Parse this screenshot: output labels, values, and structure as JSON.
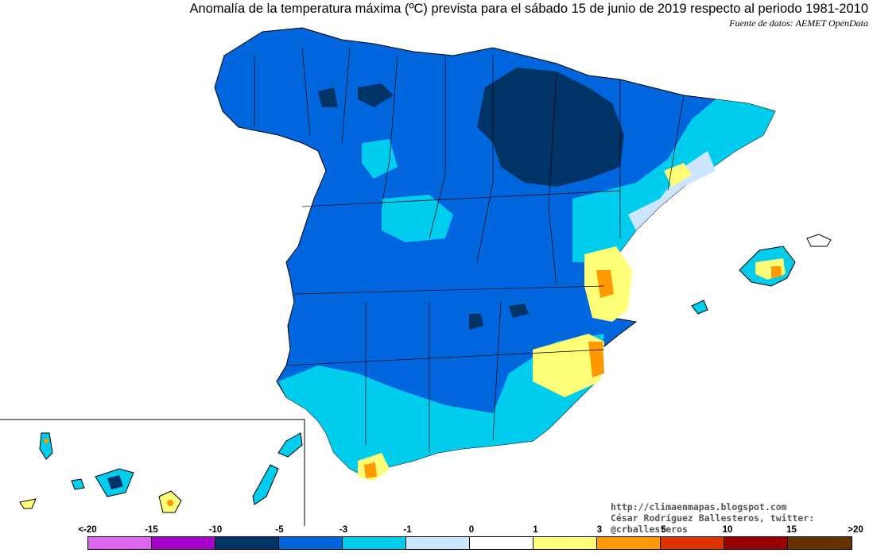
{
  "title": "Anomalía de la temperatura máxima (ºC) prevista para el sábado 15 de junio de 2019 respecto al periodo 1981-2010",
  "source": "Fuente de datos: AEMET OpenData",
  "credits": [
    "http://climaenmapas.blogspot.com",
    "César Rodríguez Ballesteros, twitter: @crballesteros"
  ],
  "legend": {
    "labels": [
      "<-20",
      "-15",
      "-10",
      "-5",
      "-3",
      "-1",
      "0",
      "1",
      "3",
      "5",
      "10",
      "15",
      ">20"
    ],
    "colors": [
      "#dd66ee",
      "#aa00cc",
      "#660099",
      "#003366",
      "#0066dd",
      "#00ccee",
      "#cce6ff",
      "#ffffff",
      "#ffff77",
      "#ff9900",
      "#dd3300",
      "#990000",
      "#663300"
    ]
  },
  "palette": {
    "very_cold": "#003366",
    "cold": "#0066dd",
    "cool": "#00ccee",
    "slightly_cool": "#cce6ff",
    "neutral": "#ffffff",
    "warm": "#ffff77",
    "hot": "#ff9900"
  }
}
